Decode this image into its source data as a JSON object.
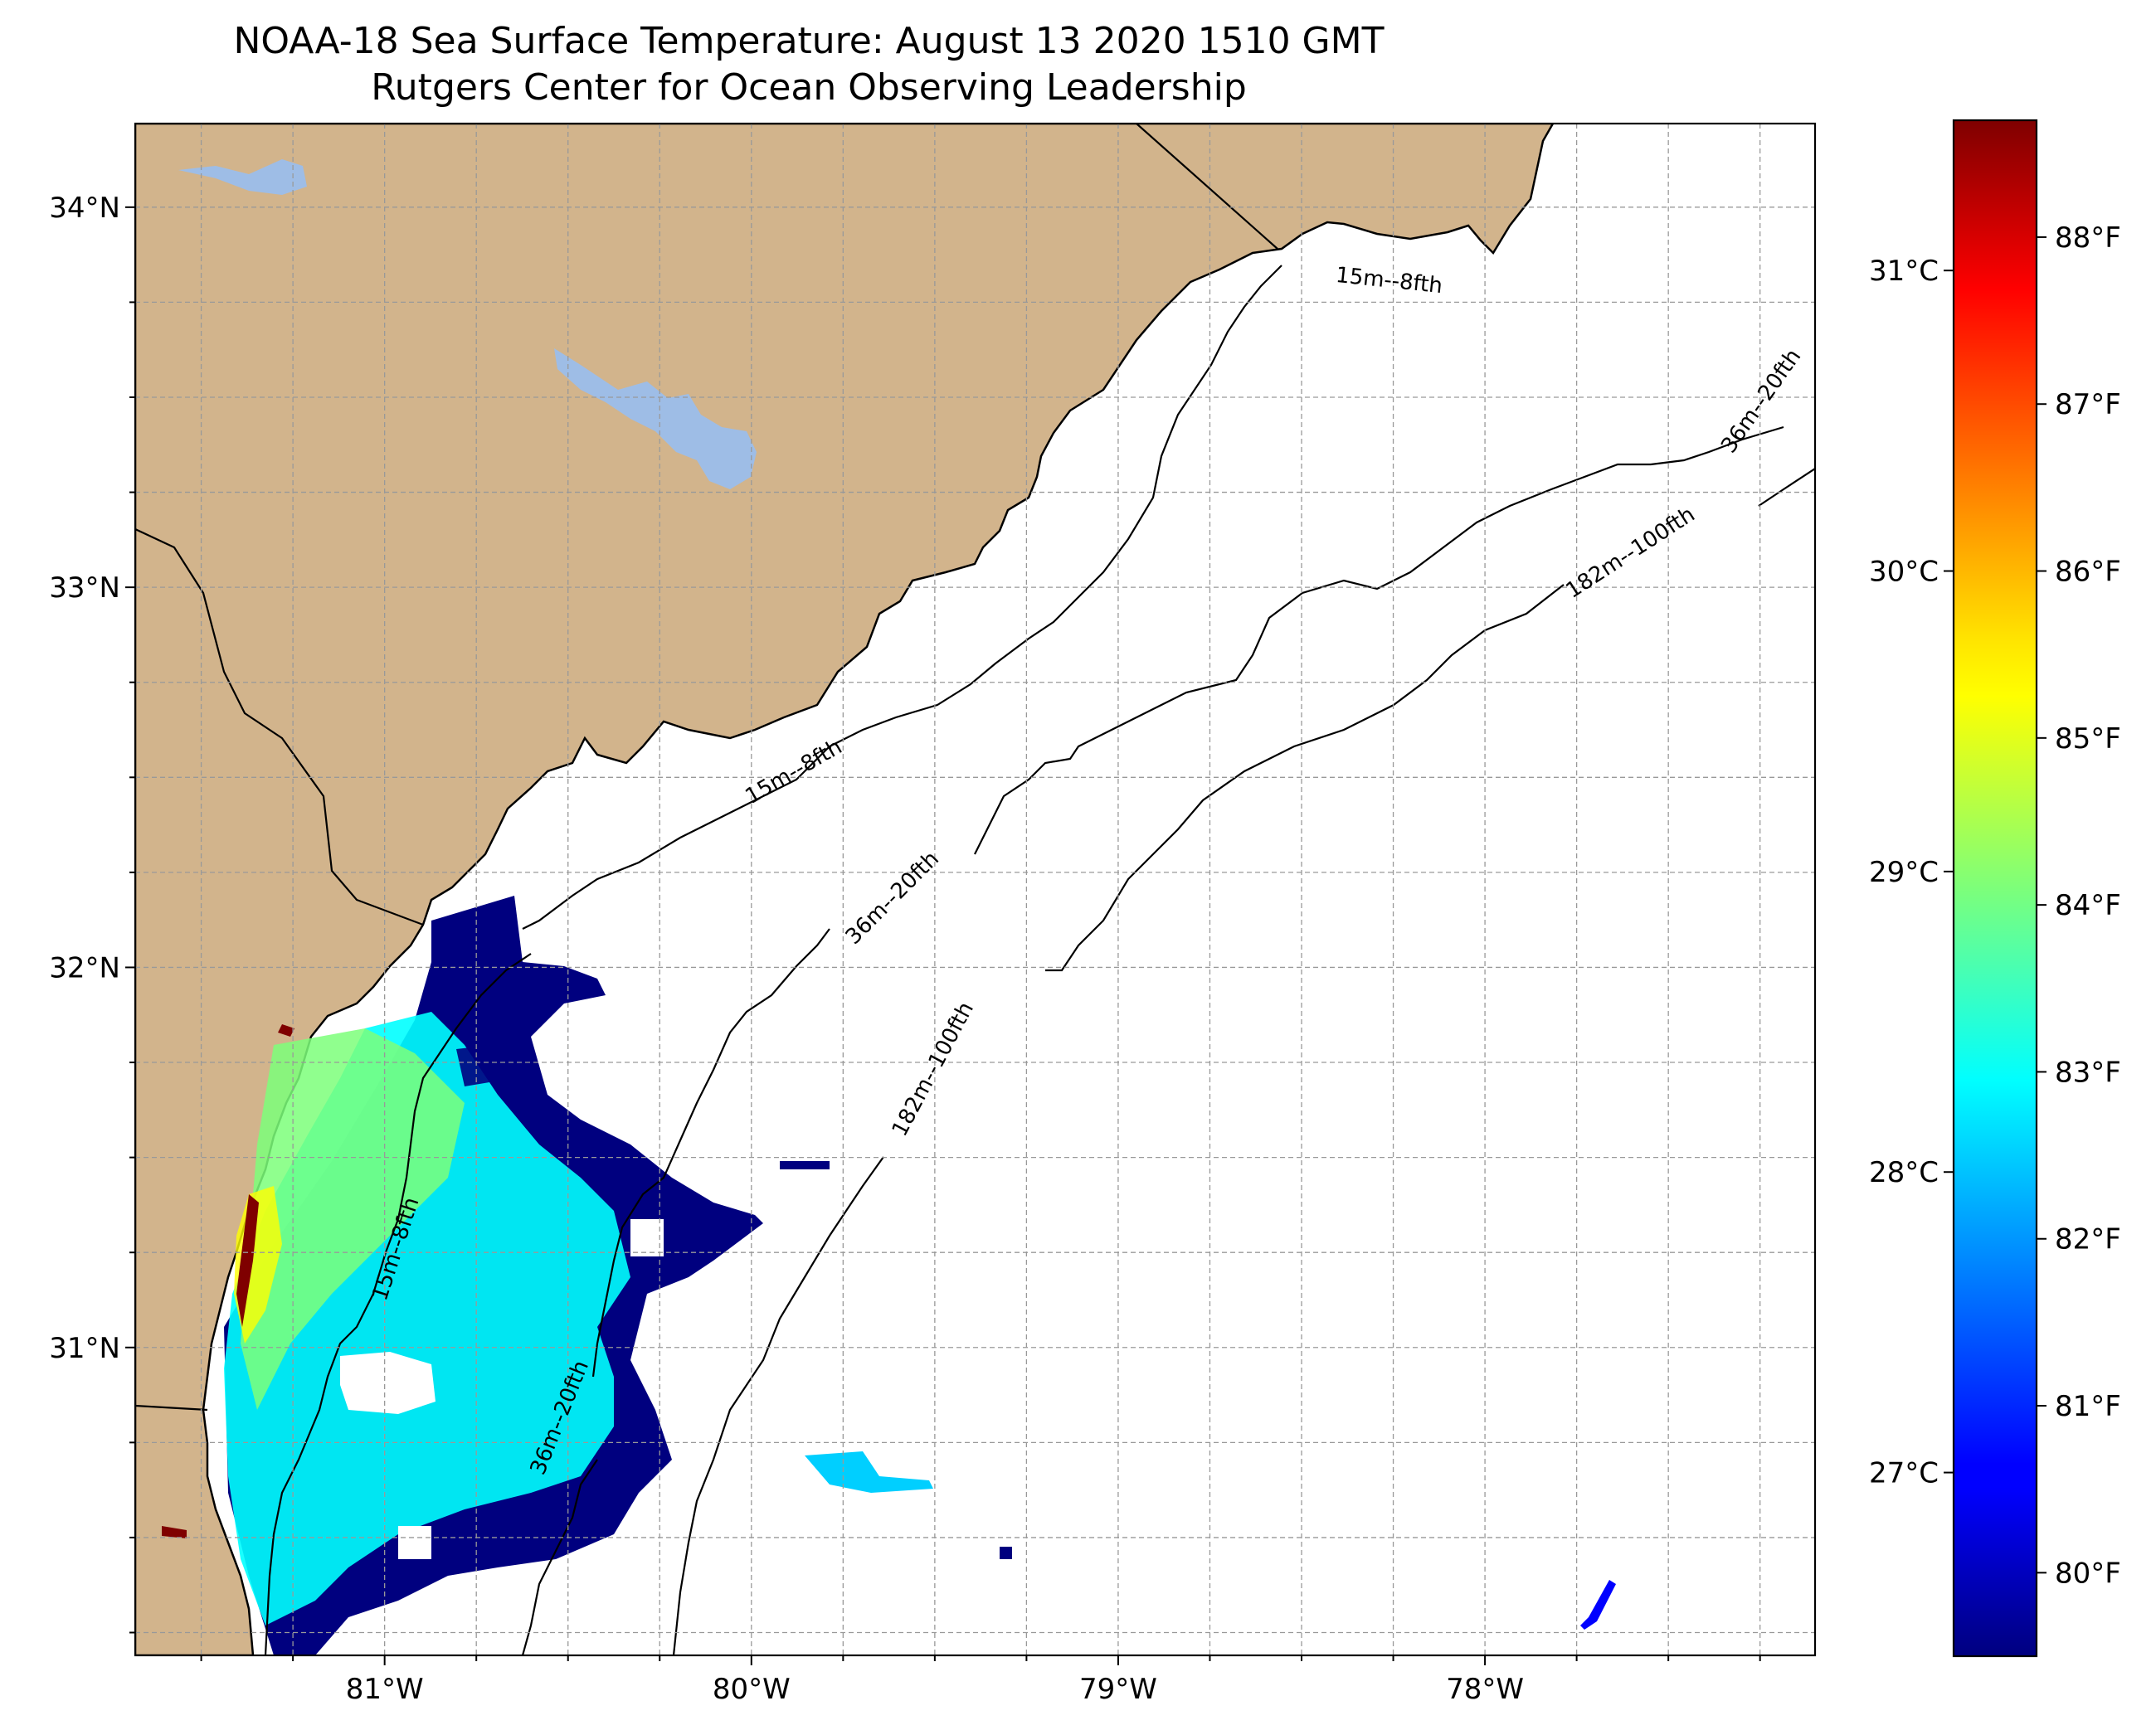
{
  "title": "NOAA-18 Sea Surface Temperature: August 13 2020 1510 GMT",
  "subtitle": "Rutgers Center for Ocean Observing Leadership",
  "map": {
    "lon_range": [
      -81.68,
      -77.1
    ],
    "lat_range": [
      30.19,
      34.22
    ],
    "grid": true,
    "land_color": "#d2b48c",
    "lake_color": "#9ebde6",
    "coastline_color": "#000000"
  },
  "axes": {
    "lon_ticks": [
      {
        "value": -81,
        "label": "81°W"
      },
      {
        "value": -80,
        "label": "80°W"
      },
      {
        "value": -79,
        "label": "79°W"
      },
      {
        "value": -78,
        "label": "78°W"
      }
    ],
    "lat_ticks": [
      {
        "value": 34,
        "label": "34°N"
      },
      {
        "value": 33,
        "label": "33°N"
      },
      {
        "value": 32,
        "label": "32°N"
      },
      {
        "value": 31,
        "label": "31°N"
      }
    ]
  },
  "isobath_labels": [
    "15m--8fth",
    "15m--8fth",
    "15m--8fth",
    "36m--20fth",
    "36m--20fth",
    "36m--20fth",
    "182m--100fth",
    "182m--100fth"
  ],
  "colorbar": {
    "colormap": "jet",
    "celsius_ticks": [
      {
        "value": 27,
        "label": "27°C"
      },
      {
        "value": 28,
        "label": "28°C"
      },
      {
        "value": 29,
        "label": "29°C"
      },
      {
        "value": 30,
        "label": "30°C"
      },
      {
        "value": 31,
        "label": "31°C"
      }
    ],
    "fahrenheit_ticks": [
      {
        "value": 80,
        "label": "80°F"
      },
      {
        "value": 81,
        "label": "81°F"
      },
      {
        "value": 82,
        "label": "82°F"
      },
      {
        "value": 83,
        "label": "83°F"
      },
      {
        "value": 84,
        "label": "84°F"
      },
      {
        "value": 85,
        "label": "85°F"
      },
      {
        "value": 86,
        "label": "86°F"
      },
      {
        "value": 87,
        "label": "87°F"
      },
      {
        "value": 88,
        "label": "88°F"
      }
    ],
    "fahrenheit_range": [
      79.5,
      88.7
    ]
  }
}
